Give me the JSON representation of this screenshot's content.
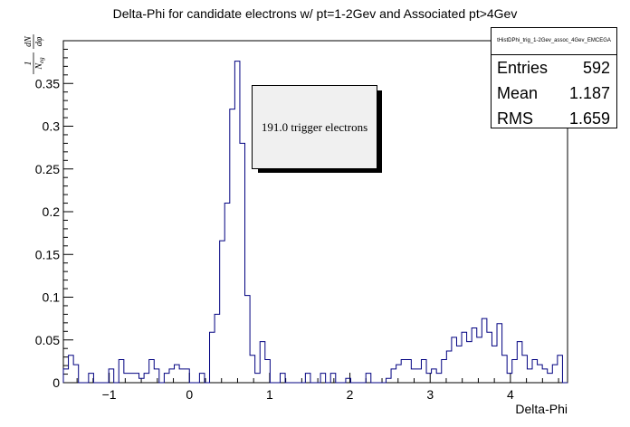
{
  "chart_data": {
    "type": "histogram",
    "title": "Delta-Phi for candidate electrons w/ pt=1-2Gev and Associated pt>4Gev",
    "xlabel": "Delta-Phi",
    "ylabel": "1/N_eg dN/dφ",
    "xlim": [
      -1.571,
      4.712
    ],
    "ylim": [
      0,
      0.4
    ],
    "x_ticks": [
      "−1",
      "0",
      "1",
      "2",
      "3",
      "4"
    ],
    "y_ticks": [
      "0",
      "0.05",
      "0.1",
      "0.15",
      "0.2",
      "0.25",
      "0.3",
      "0.35"
    ],
    "bin_count": 100,
    "line_color": "#000080",
    "values": [
      0.016,
      0.032,
      0.021,
      0.0,
      0.0,
      0.011,
      0.0,
      0.0,
      0.0,
      0.016,
      0.0,
      0.027,
      0.011,
      0.011,
      0.011,
      0.005,
      0.011,
      0.027,
      0.016,
      0.0,
      0.011,
      0.016,
      0.021,
      0.016,
      0.016,
      0.0,
      0.0,
      0.011,
      0.0,
      0.059,
      0.08,
      0.166,
      0.21,
      0.32,
      0.376,
      0.28,
      0.102,
      0.032,
      0.011,
      0.048,
      0.027,
      0.0,
      0.0,
      0.011,
      0.0,
      0.0,
      0.0,
      0.0,
      0.011,
      0.0,
      0.0,
      0.011,
      0.0,
      0.011,
      0.0,
      0.0,
      0.005,
      0.0,
      0.0,
      0.0,
      0.011,
      0.0,
      0.0,
      0.0,
      0.005,
      0.016,
      0.021,
      0.027,
      0.027,
      0.016,
      0.016,
      0.027,
      0.011,
      0.016,
      0.011,
      0.027,
      0.037,
      0.053,
      0.043,
      0.059,
      0.048,
      0.064,
      0.053,
      0.075,
      0.059,
      0.043,
      0.069,
      0.032,
      0.011,
      0.027,
      0.048,
      0.032,
      0.016,
      0.027,
      0.021,
      0.016,
      0.011,
      0.021,
      0.032,
      0.0
    ],
    "stats": {
      "name": "tHistDPhi_trig_1-2Gev_assoc_4Gev_EMCEGA",
      "entries_label": "Entries",
      "entries": "592",
      "mean_label": "Mean",
      "mean": "1.187",
      "rms_label": "RMS",
      "rms": "1.659"
    },
    "annotation": "191.0 trigger electrons"
  }
}
